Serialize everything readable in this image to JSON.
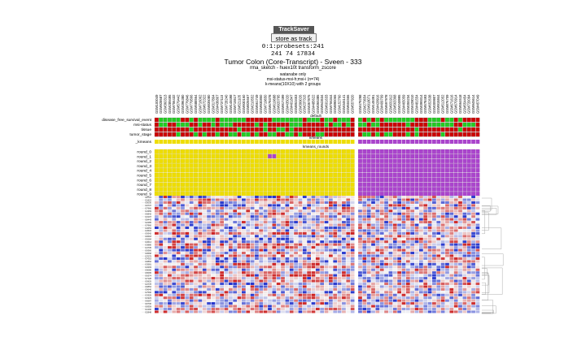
{
  "tracksaver": {
    "badge": "TrackSaver",
    "store_button": "store as track"
  },
  "probesets_line": "0:1:probesets:241",
  "counts_line": "241 74 17834",
  "title": "Tumor Colon (Core-Transcript) - Sveen - 333",
  "subtitle": "rma_sketch - huex10t transform_zscore",
  "notes": [
    "watanabe only",
    "msi-status-msi-h;msi-i (n=74)",
    "k-means(10X10) with 2 groups"
  ],
  "section_labels": {
    "default": "default",
    "kmeans": "kmeans",
    "kmeans_rounds": "kmeans_rounds"
  },
  "track_labels": [
    "disease_free_survival_event",
    "msi-status",
    "tissue",
    "tumor_stage"
  ],
  "kmeans_label": "_kmeans",
  "round_labels": [
    "round_0",
    "round_1",
    "round_2",
    "round_3",
    "round_4",
    "round_5",
    "round_6",
    "round_7",
    "round_8",
    "round_9"
  ],
  "groups": {
    "left_count": 46,
    "right_count": 28
  },
  "colors": {
    "green": "#22cc22",
    "red": "#cc0000",
    "yellow": "#eedd00",
    "purple": "#aa44cc",
    "heat_high": "#cc2222",
    "heat_low": "#2233cc",
    "heat_mid": "#f4f4f4"
  },
  "sample_prefix": "GSM"
}
